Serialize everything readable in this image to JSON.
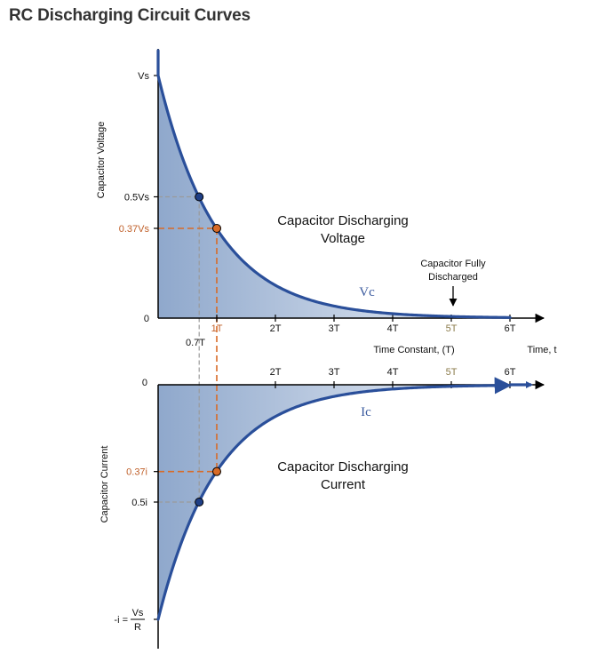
{
  "title": "RC Discharging Circuit Curves",
  "colors": {
    "curve": "#2a4f9a",
    "fill_dark": "#8fa8cc",
    "fill_light": "#eef2f8",
    "marker_blue": "#1f3f86",
    "marker_orange": "#d86b28",
    "guide_orange": "#d86b28",
    "guide_gray": "#9a9a9a",
    "axis": "#000000"
  },
  "chart_data": [
    {
      "type": "line",
      "panel": "voltage",
      "xlabel": "Time Constant, (T)",
      "xlabel_right": "Time, t",
      "ylabel": "Capacitor Voltage",
      "x_ticks": [
        "1T",
        "2T",
        "3T",
        "4T",
        "5T",
        "6T"
      ],
      "x_tick_values": [
        1,
        2,
        3,
        4,
        5,
        6
      ],
      "y_ticks": [
        "Vs",
        "0.5Vs",
        "0.37Vs",
        "0"
      ],
      "y_tick_values": [
        1.0,
        0.5,
        0.37,
        0
      ],
      "xlim": [
        0,
        6.4
      ],
      "ylim": [
        0,
        1.1
      ],
      "series": [
        {
          "name": "Vc",
          "function": "exp(-t/T)"
        }
      ],
      "markers": [
        {
          "label": "0.7T",
          "x": 0.7,
          "y": 0.5
        },
        {
          "x": 1.0,
          "y": 0.37
        }
      ],
      "annotations": {
        "curve_label": "Vc",
        "text_line1": "Capacitor Discharging",
        "text_line2": "Voltage",
        "fully_line1": "Capacitor Fully",
        "fully_line2": "Discharged",
        "t07_label": "0.7T"
      }
    },
    {
      "type": "line",
      "panel": "current",
      "ylabel": "Capacitor Current",
      "x_ticks": [
        "2T",
        "3T",
        "4T",
        "5T",
        "6T"
      ],
      "x_tick_values": [
        2,
        3,
        4,
        5,
        6
      ],
      "y_ticks": [
        "0",
        "0.37i",
        "0.5i",
        "-i ="
      ],
      "y_tick_values": [
        0,
        -0.37,
        -0.5,
        -1.0
      ],
      "xlim": [
        0,
        6.4
      ],
      "ylim": [
        -1.1,
        0
      ],
      "series": [
        {
          "name": "Ic",
          "function": "-exp(-t/T)"
        }
      ],
      "markers": [
        {
          "x": 0.7,
          "y": -0.5
        },
        {
          "x": 1.0,
          "y": -0.37
        }
      ],
      "annotations": {
        "curve_label": "Ic",
        "text_line1": "Capacitor Discharging",
        "text_line2": "Current",
        "neg_i_label": "-i =",
        "frac_num": "Vs",
        "frac_den": "R"
      }
    }
  ]
}
